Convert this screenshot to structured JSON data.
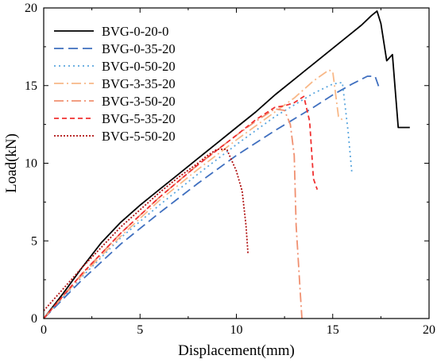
{
  "chart_data": {
    "type": "line",
    "title": "",
    "xlabel": "Displacement(mm)",
    "ylabel": "Load(kN)",
    "xlim": [
      0,
      20
    ],
    "ylim": [
      0,
      20
    ],
    "xticks": [
      "0",
      "5",
      "10",
      "15",
      "20"
    ],
    "yticks": [
      "0",
      "5",
      "10",
      "15",
      "20"
    ],
    "grid": false,
    "legend_position": "top-left",
    "series": [
      {
        "name": "BVG-0-20-0",
        "color": "#000000",
        "dash": "solid",
        "x": [
          0,
          1,
          2,
          3,
          4,
          5,
          6,
          7,
          8,
          9,
          10,
          11,
          12,
          13,
          14,
          15,
          16,
          16.5,
          17,
          17.3,
          17.5,
          17.8,
          18.1,
          18.4,
          19.0
        ],
        "y": [
          0,
          1.6,
          3.3,
          4.9,
          6.2,
          7.3,
          8.3,
          9.3,
          10.3,
          11.3,
          12.3,
          13.3,
          14.4,
          15.4,
          16.4,
          17.4,
          18.4,
          18.9,
          19.5,
          19.8,
          19.0,
          16.6,
          17.0,
          12.3,
          12.3
        ]
      },
      {
        "name": "BVG-0-35-20",
        "color": "#3f6fbf",
        "dash": "12,6",
        "x": [
          0,
          2,
          4,
          6,
          8,
          10,
          12,
          14,
          15,
          16,
          16.8,
          17.2,
          17.4
        ],
        "y": [
          0,
          2.5,
          4.8,
          6.8,
          8.7,
          10.5,
          12.1,
          13.6,
          14.4,
          15.1,
          15.6,
          15.6,
          14.9
        ]
      },
      {
        "name": "BVG-0-50-20",
        "color": "#5aa6de",
        "dash": "2,4",
        "x": [
          0,
          2,
          4,
          6,
          8,
          10,
          12,
          14,
          15,
          15.5,
          15.8,
          16.0
        ],
        "y": [
          0,
          2.7,
          5.2,
          7.3,
          9.3,
          11.2,
          13.0,
          14.5,
          15.1,
          15.2,
          12.0,
          9.3
        ]
      },
      {
        "name": "BVG-3-35-20",
        "color": "#f8b888",
        "dash": "12,4,2,4",
        "x": [
          0,
          2,
          4,
          6,
          8,
          10,
          12,
          13,
          14,
          14.8,
          15.0,
          15.3,
          15.5
        ],
        "y": [
          0,
          2.8,
          5.3,
          7.6,
          9.6,
          11.5,
          13.3,
          14.2,
          15.3,
          16.0,
          15.9,
          13.0,
          12.8
        ]
      },
      {
        "name": "BVG-3-50-20",
        "color": "#f09070",
        "dash": "12,4,2,4",
        "x": [
          0,
          2,
          4,
          6,
          8,
          10,
          11,
          12,
          12.5,
          12.8,
          13.0,
          13.1,
          13.3,
          13.4
        ],
        "y": [
          0,
          2.9,
          5.5,
          7.8,
          9.9,
          11.8,
          12.7,
          13.5,
          13.4,
          12.5,
          10.5,
          6.0,
          2.0,
          0
        ]
      },
      {
        "name": "BVG-5-35-20",
        "color": "#f03030",
        "dash": "6,4",
        "x": [
          0,
          2,
          4,
          6,
          8,
          10,
          11,
          12,
          12.5,
          13.0,
          13.5,
          13.8,
          14.0,
          14.2
        ],
        "y": [
          0,
          2.9,
          5.5,
          7.8,
          9.9,
          11.8,
          12.8,
          13.6,
          13.7,
          13.9,
          14.3,
          12.7,
          9.0,
          8.3
        ]
      },
      {
        "name": "BVG-5-50-20",
        "color": "#b01010",
        "dash": "2,2",
        "x": [
          0,
          1,
          2,
          3,
          4,
          5,
          6,
          7,
          8,
          8.5,
          9.0,
          9.5,
          10.0,
          10.3,
          10.5,
          10.6
        ],
        "y": [
          0.5,
          1.9,
          3.3,
          4.6,
          5.9,
          7.0,
          8.1,
          9.1,
          10.0,
          10.5,
          10.9,
          10.9,
          9.5,
          8.2,
          6.0,
          4.2
        ]
      }
    ]
  }
}
